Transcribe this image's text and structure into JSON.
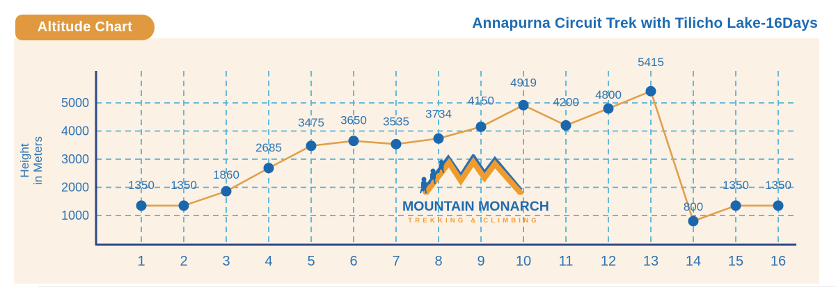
{
  "badge": {
    "label": "Altitude Chart"
  },
  "header": {
    "title": "Annapurna Circuit Trek with Tilicho Lake-16Days"
  },
  "watermark": {
    "name": "MOUNTAIN MONARCH",
    "tagline": "TREKKING & CLIMBING"
  },
  "chart_data": {
    "type": "line",
    "title": "Altitude Chart",
    "categories": [
      "1",
      "2",
      "3",
      "4",
      "5",
      "6",
      "7",
      "8",
      "9",
      "10",
      "11",
      "12",
      "13",
      "14",
      "15",
      "16"
    ],
    "values": [
      1350,
      1350,
      1860,
      2685,
      3475,
      3650,
      3535,
      3734,
      4150,
      4919,
      4200,
      4800,
      5415,
      800,
      1350,
      1350
    ],
    "ylabel_lines": [
      "Height",
      "in Meters"
    ],
    "y_ticks": [
      1000,
      2000,
      3000,
      4000,
      5000
    ],
    "ylim": [
      0,
      5800
    ],
    "grid": "dashed-both-directions",
    "legend": "none",
    "colors": {
      "line": "#e0a04a",
      "point": "#1b67ae",
      "grid": "#54b3d9",
      "axis": "#2b4a86",
      "label": "#2e74b2",
      "panel_bg": "#fcf1e5",
      "badge_bg": "#e0993f",
      "badge_text": "#ffffff",
      "title": "#1e6bb1",
      "logo_blue": "#2e6fb0",
      "logo_orange": "#f09c2d"
    }
  }
}
